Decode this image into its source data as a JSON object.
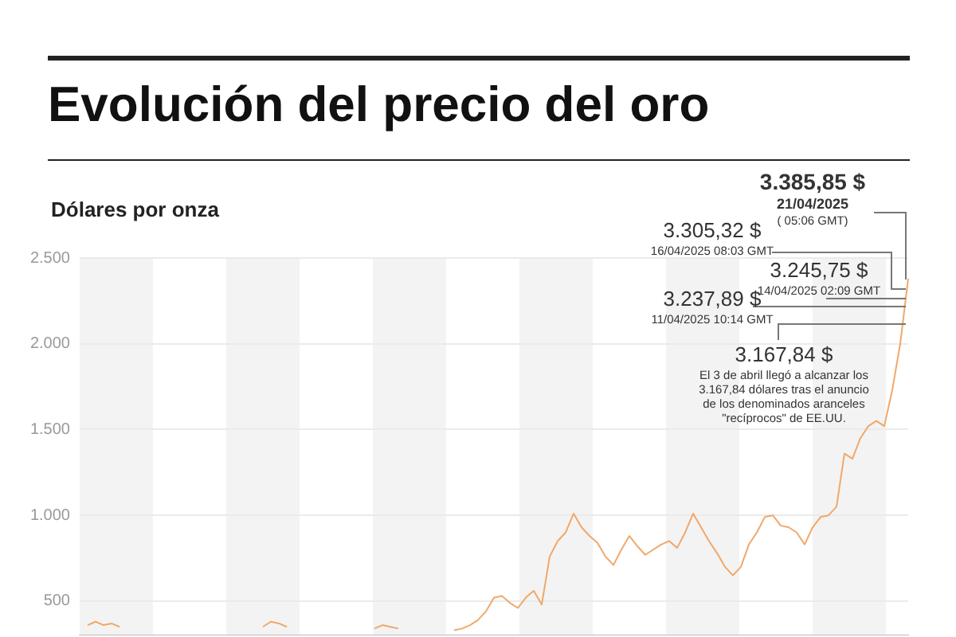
{
  "chart_data": {
    "type": "line",
    "title": "Evolución del precio del oro",
    "ylabel": "Dólares por onza",
    "categories": [
      null,
      null,
      null,
      null,
      null,
      null,
      null,
      null,
      null,
      null,
      null,
      null,
      null,
      null,
      null,
      null,
      null,
      null,
      null,
      null,
      null,
      null,
      null,
      null,
      null,
      null,
      null,
      null,
      null,
      null,
      null,
      null,
      null,
      null,
      null,
      null,
      null,
      null,
      null,
      null,
      null,
      null,
      null,
      null,
      null,
      null,
      null,
      null,
      null,
      null,
      null,
      null,
      null,
      null,
      null,
      null,
      null,
      null,
      null,
      null,
      null,
      null,
      null,
      null,
      null,
      null,
      null,
      null,
      null,
      null,
      null,
      null,
      null,
      null,
      null,
      null,
      null,
      null,
      null,
      null,
      null,
      null,
      null,
      null,
      null,
      null,
      null,
      null,
      null,
      null,
      null,
      null,
      null,
      null,
      null,
      null,
      null,
      null,
      null,
      null,
      null,
      null,
      null,
      null,
      null
    ],
    "series": [
      {
        "color": "#f0a868",
        "values": [
          null,
          360,
          380,
          360,
          370,
          350,
          null,
          null,
          null,
          null,
          null,
          null,
          null,
          null,
          null,
          null,
          null,
          null,
          null,
          null,
          null,
          null,
          null,
          null,
          null,
          null,
          null,
          null,
          null,
          null,
          null,
          null,
          null,
          null,
          null,
          null,
          null,
          null,
          null,
          null,
          null,
          null,
          null,
          null,
          null,
          null,
          null,
          null,
          null,
          null,
          null,
          null,
          null,
          null,
          null,
          null,
          null,
          null,
          null,
          null,
          null,
          null,
          null,
          null,
          null,
          null,
          null,
          null,
          null,
          null,
          null,
          null,
          null,
          null,
          null,
          null,
          null,
          null,
          null,
          null,
          null,
          null,
          null,
          null,
          null,
          null,
          null,
          null,
          null,
          null,
          null,
          null,
          null,
          null,
          null,
          null,
          null,
          null,
          null,
          null,
          null,
          null,
          null,
          null,
          null
        ]
      },
      {
        "color": "#f0a869",
        "values": [
          null,
          null,
          null,
          null,
          null,
          null,
          null,
          null,
          null,
          null,
          null,
          null,
          null,
          null,
          null,
          null,
          null,
          null,
          null,
          null,
          null,
          null,
          null,
          350,
          380,
          370,
          350,
          null,
          null,
          null,
          null,
          null,
          null,
          null,
          null,
          null,
          null,
          null,
          null,
          null,
          null,
          null,
          null,
          null,
          null,
          null,
          null,
          null,
          null,
          null,
          null,
          null,
          null,
          null,
          null,
          null,
          null,
          null,
          null,
          null,
          null,
          null,
          null,
          null,
          null,
          null,
          null,
          null,
          null,
          null,
          null,
          null,
          null,
          null,
          null,
          null,
          null,
          null,
          null,
          null,
          null,
          null,
          null,
          null,
          null,
          null,
          null,
          null,
          null,
          null,
          null,
          null,
          null,
          null,
          null,
          null,
          null,
          null,
          null,
          null,
          null,
          null,
          null,
          null,
          null
        ]
      },
      {
        "color": "#f0a86a",
        "values": [
          null,
          null,
          null,
          null,
          null,
          null,
          null,
          null,
          null,
          null,
          null,
          null,
          null,
          null,
          null,
          null,
          null,
          null,
          null,
          null,
          null,
          null,
          null,
          null,
          null,
          null,
          null,
          null,
          null,
          null,
          null,
          null,
          null,
          null,
          null,
          null,
          null,
          340,
          360,
          350,
          340,
          null,
          null,
          null,
          null,
          null,
          null,
          null,
          null,
          null,
          null,
          null,
          null,
          null,
          null,
          null,
          null,
          null,
          null,
          null,
          null,
          null,
          null,
          null,
          null,
          null,
          null,
          null,
          null,
          null,
          null,
          null,
          null,
          null,
          null,
          null,
          null,
          null,
          null,
          null,
          null,
          null,
          null,
          null,
          null,
          null,
          null,
          null,
          null,
          null,
          null,
          null,
          null,
          null,
          null,
          null,
          null,
          null,
          null,
          null,
          null,
          null,
          null,
          null,
          null
        ]
      },
      {
        "color": "#f0a86b",
        "values": [
          null,
          null,
          null,
          null,
          null,
          null,
          null,
          null,
          null,
          null,
          null,
          null,
          null,
          null,
          null,
          null,
          null,
          null,
          null,
          null,
          null,
          null,
          null,
          null,
          null,
          null,
          null,
          null,
          null,
          null,
          null,
          null,
          null,
          null,
          null,
          null,
          null,
          null,
          null,
          null,
          null,
          null,
          null,
          null,
          null,
          null,
          null,
          330,
          340,
          360,
          390,
          440,
          520,
          530,
          490,
          460,
          520,
          560,
          480,
          760,
          850,
          900,
          1010,
          930,
          880,
          840,
          760,
          710,
          800,
          880,
          820,
          770,
          800,
          830,
          850,
          810,
          900,
          1010,
          930,
          850,
          780,
          700,
          650,
          700,
          830,
          900,
          990,
          1000,
          940,
          930,
          900,
          830,
          930,
          990,
          1000,
          1050,
          1360,
          1330,
          1450,
          1520,
          1550,
          1520,
          1730,
          2000,
          2380
        ]
      }
    ],
    "ylim": [
      300,
      2500
    ],
    "yticks": [
      {
        "value": 500,
        "label": "500"
      },
      {
        "value": 1000,
        "label": "1.000"
      },
      {
        "value": 1500,
        "label": "1.500"
      },
      {
        "value": 2000,
        "label": "2.000"
      },
      {
        "value": 2500,
        "label": "2.500"
      }
    ],
    "grid": "y",
    "tick_labels": "y",
    "legend": false,
    "marker": "none",
    "line_style": "solid",
    "annotations": [
      "3.385,85 $\n21/04/2025\n( 05:06 GMT)",
      "3.305,32 $\n16/04/2025 08:03 GMT",
      "3.245,75 $\n14/04/2025 02:09 GMT",
      "3.237,89 $\n11/04/2025 10:14 GMT",
      "3.167,84 $\nEl 3 de abril llegó a alcanzar los\n3.167,84 dólares tras el anuncio\nde los denominados aranceles\n\"recíprocos\" de EE.UU."
    ]
  }
}
